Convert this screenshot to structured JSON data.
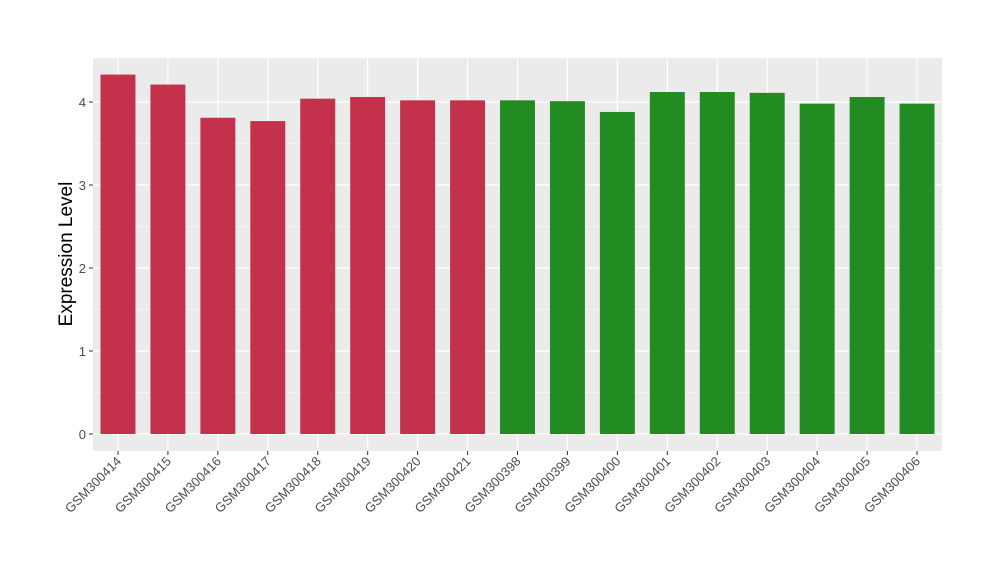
{
  "chart_data": {
    "type": "bar",
    "title": "",
    "xlabel": "",
    "ylabel": "Expression Level",
    "ylim": [
      -0.2,
      4.55
    ],
    "yticks": [
      0,
      1,
      2,
      3,
      4
    ],
    "categories": [
      "GSM300414",
      "GSM300415",
      "GSM300416",
      "GSM300417",
      "GSM300418",
      "GSM300419",
      "GSM300420",
      "GSM300421",
      "GSM300398",
      "GSM300399",
      "GSM300400",
      "GSM300401",
      "GSM300402",
      "GSM300403",
      "GSM300404",
      "GSM300405",
      "GSM300406"
    ],
    "values": [
      4.33,
      4.21,
      3.81,
      3.77,
      4.04,
      4.06,
      4.02,
      4.02,
      4.02,
      4.01,
      3.88,
      4.12,
      4.12,
      4.11,
      3.98,
      4.06,
      3.98
    ],
    "groups": [
      "red",
      "red",
      "red",
      "red",
      "red",
      "red",
      "red",
      "red",
      "green",
      "green",
      "green",
      "green",
      "green",
      "green",
      "green",
      "green",
      "green"
    ],
    "colors": {
      "red": "#C3314A",
      "green": "#228B22"
    },
    "grid": true,
    "legend": "none"
  }
}
